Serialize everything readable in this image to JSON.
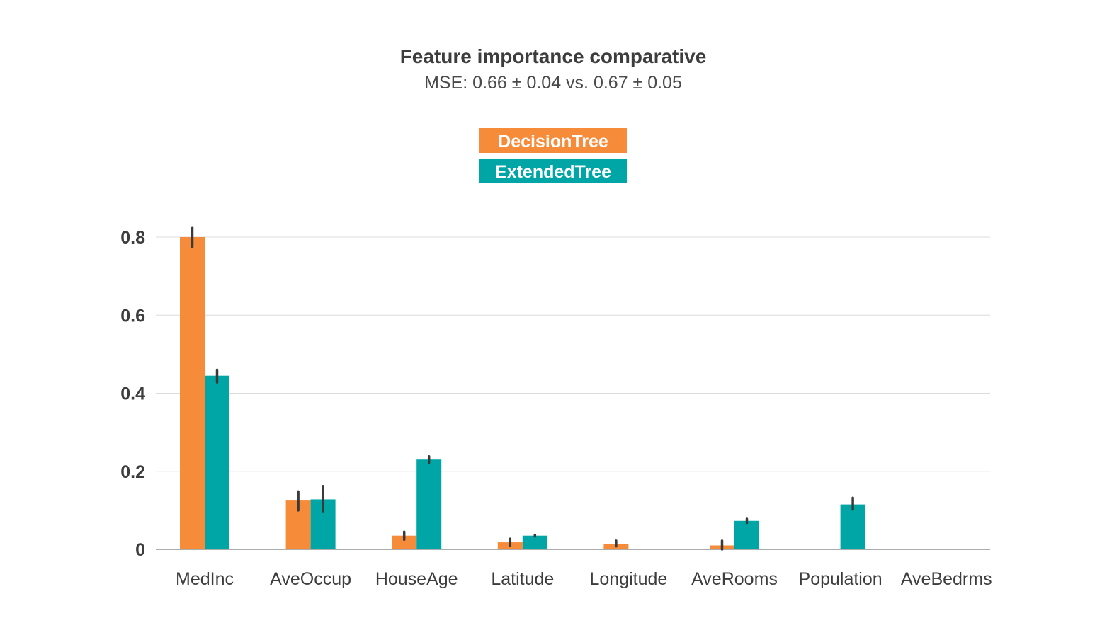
{
  "chart_data": {
    "type": "bar",
    "title": "Feature importance comparative",
    "subtitle": "MSE: 0.66 ± 0.04 vs. 0.67 ± 0.05",
    "xlabel": "",
    "ylabel": "",
    "ylim": [
      0,
      0.85
    ],
    "yticks": [
      0,
      0.2,
      0.4,
      0.6,
      0.8
    ],
    "ytick_labels": [
      "0",
      "0.2",
      "0.4",
      "0.6",
      "0.8"
    ],
    "grid": true,
    "legend_placement": "top-center",
    "categories": [
      "MedInc",
      "AveOccup",
      "HouseAge",
      "Latitude",
      "Longitude",
      "AveRooms",
      "Population",
      "AveBedrms"
    ],
    "series": [
      {
        "name": "DecisionTree",
        "color": "#f68b3a",
        "values": [
          0.8,
          0.125,
          0.035,
          0.018,
          0.014,
          0.01,
          0.0,
          0.0
        ],
        "err_low": [
          0.775,
          0.1,
          0.025,
          0.01,
          0.008,
          0.0,
          null,
          null
        ],
        "err_high": [
          0.825,
          0.148,
          0.045,
          0.027,
          0.022,
          0.022,
          null,
          null
        ]
      },
      {
        "name": "ExtendedTree",
        "color": "#00a6a6",
        "values": [
          0.445,
          0.128,
          0.23,
          0.035,
          0.0,
          0.073,
          0.115,
          0.0
        ],
        "err_low": [
          0.428,
          0.098,
          0.222,
          0.033,
          null,
          0.068,
          0.102,
          null
        ],
        "err_high": [
          0.46,
          0.162,
          0.238,
          0.037,
          null,
          0.078,
          0.132,
          null
        ]
      }
    ]
  }
}
